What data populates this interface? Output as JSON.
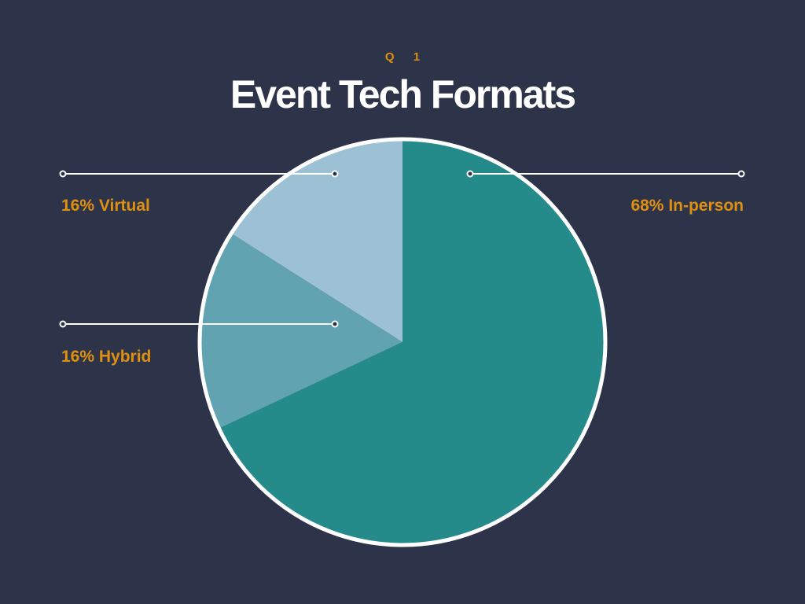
{
  "header": {
    "kicker": "Q 1",
    "title": "Event Tech Formats"
  },
  "chart_data": {
    "type": "pie",
    "title": "Event Tech Formats",
    "slices": [
      {
        "label": "In-person",
        "value": 68,
        "display": "68% In-person",
        "color": "#258a8a"
      },
      {
        "label": "Hybrid",
        "value": 16,
        "display": "16% Hybrid",
        "color": "#61a3b0"
      },
      {
        "label": "Virtual",
        "value": 16,
        "display": "16% Virtual",
        "color": "#9cc0d4"
      }
    ],
    "start": "top",
    "direction": "clockwise",
    "colors": {
      "background": "#2d3449",
      "outline": "#ffffff",
      "label": "#e0900f",
      "leader": "#ffffff"
    }
  }
}
